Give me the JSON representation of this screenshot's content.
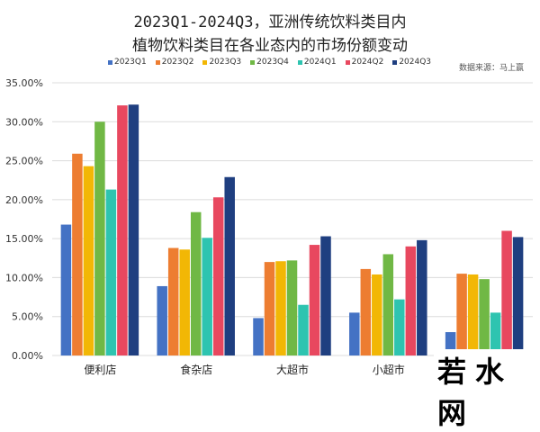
{
  "chart_data": {
    "type": "bar",
    "title": "2023Q1-2024Q3，亚洲传统饮料类目内",
    "subtitle": "植物饮料类目在各业态内的市场份额变动",
    "source": "数据来源：马上赢",
    "categories": [
      "便利店",
      "食杂店",
      "大超市",
      "小超市",
      ""
    ],
    "series": [
      {
        "name": "2023Q1",
        "color": "#4472C4",
        "values": [
          16.8,
          8.9,
          4.8,
          5.5,
          3.0
        ]
      },
      {
        "name": "2023Q2",
        "color": "#ED7D31",
        "values": [
          25.9,
          13.8,
          12.0,
          11.1,
          10.5
        ]
      },
      {
        "name": "2023Q3",
        "color": "#F2B705",
        "values": [
          24.3,
          13.6,
          12.1,
          10.4,
          10.4
        ]
      },
      {
        "name": "2023Q4",
        "color": "#70B845",
        "values": [
          30.0,
          18.4,
          12.2,
          13.0,
          9.8
        ]
      },
      {
        "name": "2024Q1",
        "color": "#2EC4B0",
        "values": [
          21.3,
          15.1,
          6.5,
          7.2,
          5.5
        ]
      },
      {
        "name": "2024Q2",
        "color": "#E8485F",
        "values": [
          32.1,
          20.3,
          14.2,
          14.0,
          16.0
        ]
      },
      {
        "name": "2024Q3",
        "color": "#1F3F80",
        "values": [
          32.2,
          22.9,
          15.3,
          14.8,
          15.2
        ]
      }
    ],
    "yticks": [
      "0.00%",
      "5.00%",
      "10.00%",
      "15.00%",
      "20.00%",
      "25.00%",
      "30.00%",
      "35.00%"
    ],
    "ylim": [
      0,
      35
    ],
    "grid": true,
    "legend": "top"
  },
  "watermark": "若水网"
}
